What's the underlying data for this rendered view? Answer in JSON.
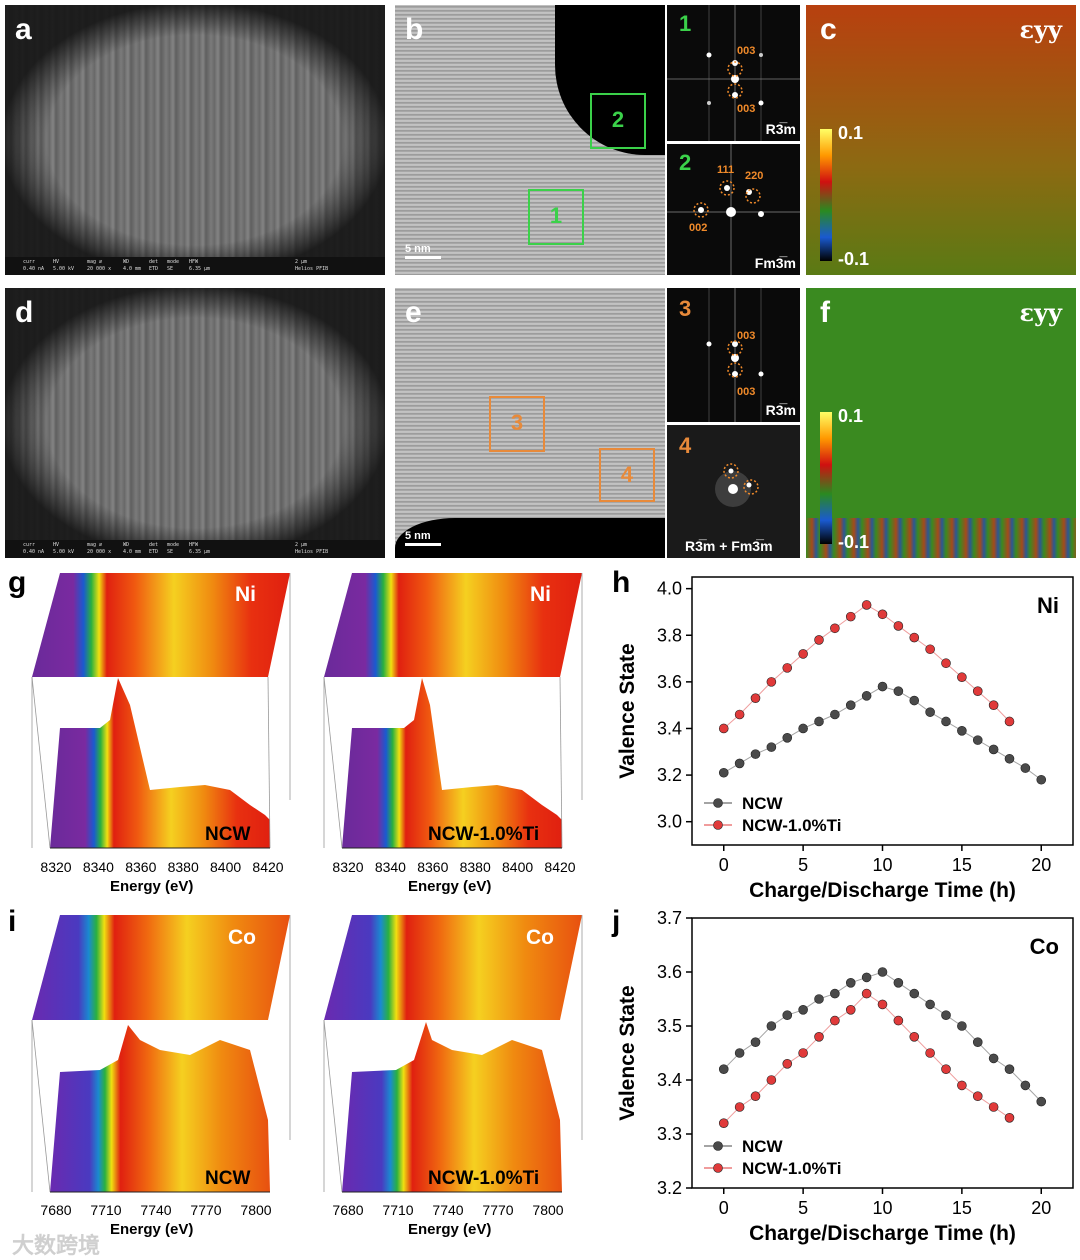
{
  "panels": {
    "a": {
      "label": "a"
    },
    "b": {
      "label": "b",
      "scale": "5 nm",
      "box1": "1",
      "box2": "2"
    },
    "b_fft1": {
      "num": "1",
      "idx_top": "003",
      "idx_bot": "003",
      "phase": "R3̅m"
    },
    "b_fft2": {
      "num": "2",
      "idx_111": "111",
      "idx_220": "220",
      "idx_002": "002",
      "phase": "Fm3̅m"
    },
    "c": {
      "label": "c",
      "strain": "εyy",
      "cmax": "0.1",
      "cmin": "-0.1"
    },
    "d": {
      "label": "d"
    },
    "e": {
      "label": "e",
      "scale": "5 nm",
      "box3": "3",
      "box4": "4"
    },
    "e_fft3": {
      "num": "3",
      "idx_top": "003",
      "idx_bot": "003",
      "phase": "R3̅m"
    },
    "e_fft4": {
      "num": "4",
      "phase": "R3̅m + Fm3̅m"
    },
    "f": {
      "label": "f",
      "strain": "εyy",
      "cmax": "0.1",
      "cmin": "-0.1"
    },
    "g": {
      "label": "g",
      "element": "Ni",
      "sample_left": "NCW",
      "sample_right": "NCW-1.0%Ti",
      "xlabel": "Energy (eV)",
      "ticks": [
        "8320",
        "8340",
        "8360",
        "8380",
        "8400",
        "8420"
      ]
    },
    "i": {
      "label": "i",
      "element": "Co",
      "sample_left": "NCW",
      "sample_right": "NCW-1.0%Ti",
      "xlabel": "Energy (eV)",
      "ticks": [
        "7680",
        "7710",
        "7740",
        "7770",
        "7800"
      ]
    },
    "h": {
      "label": "h"
    },
    "j": {
      "label": "j"
    }
  },
  "sem_bar": {
    "curr": "curr",
    "hv": "HV",
    "mag": "mag ⌀",
    "wd": "WD",
    "det": "det",
    "mode": "mode",
    "hfw": "HFW",
    "curr_v": "0.40 nA",
    "hv_v": "5.00 kV",
    "mag_v": "20 000 x",
    "wd_v": "4.0 mm",
    "det_v": "ETD",
    "mode_v": "SE",
    "hfw_v": "6.35 μm",
    "scale": "2 μm",
    "brand": "Helios PFIB"
  },
  "watermark": "大数跨境",
  "chart_data": [
    {
      "type": "scatter",
      "panel": "h",
      "title": "Ni",
      "xlabel": "Charge/Discharge Time (h)",
      "ylabel": "Valence State",
      "xlim": [
        -2,
        22
      ],
      "ylim": [
        2.9,
        4.05
      ],
      "xticks": [
        0,
        5,
        10,
        15,
        20
      ],
      "yticks": [
        3.0,
        3.2,
        3.4,
        3.6,
        3.8,
        4.0
      ],
      "series": [
        {
          "name": "NCW",
          "color": "#4a4a4a",
          "x": [
            0,
            1,
            2,
            3,
            4,
            5,
            6,
            7,
            8,
            9,
            10,
            11,
            12,
            13,
            14,
            15,
            16,
            17,
            18,
            19,
            20
          ],
          "values": [
            3.21,
            3.25,
            3.29,
            3.32,
            3.36,
            3.4,
            3.43,
            3.46,
            3.5,
            3.54,
            3.58,
            3.56,
            3.52,
            3.47,
            3.43,
            3.39,
            3.35,
            3.31,
            3.27,
            3.23,
            3.18
          ]
        },
        {
          "name": "NCW-1.0%Ti",
          "color": "#e03a3a",
          "x": [
            0,
            1,
            2,
            3,
            4,
            5,
            6,
            7,
            8,
            9,
            10,
            11,
            12,
            13,
            14,
            15,
            16,
            17,
            18
          ],
          "values": [
            3.4,
            3.46,
            3.53,
            3.6,
            3.66,
            3.72,
            3.78,
            3.83,
            3.88,
            3.93,
            3.89,
            3.84,
            3.79,
            3.74,
            3.68,
            3.62,
            3.56,
            3.5,
            3.43
          ]
        }
      ]
    },
    {
      "type": "scatter",
      "panel": "j",
      "title": "Co",
      "xlabel": "Charge/Discharge Time (h)",
      "ylabel": "Valence State",
      "xlim": [
        -2,
        22
      ],
      "ylim": [
        3.2,
        3.7
      ],
      "xticks": [
        0,
        5,
        10,
        15,
        20
      ],
      "yticks": [
        3.2,
        3.3,
        3.4,
        3.5,
        3.6,
        3.7
      ],
      "series": [
        {
          "name": "NCW",
          "color": "#4a4a4a",
          "x": [
            0,
            1,
            2,
            3,
            4,
            5,
            6,
            7,
            8,
            9,
            10,
            11,
            12,
            13,
            14,
            15,
            16,
            17,
            18,
            19,
            20
          ],
          "values": [
            3.42,
            3.45,
            3.47,
            3.5,
            3.52,
            3.53,
            3.55,
            3.56,
            3.58,
            3.59,
            3.6,
            3.58,
            3.56,
            3.54,
            3.52,
            3.5,
            3.47,
            3.44,
            3.42,
            3.39,
            3.36
          ]
        },
        {
          "name": "NCW-1.0%Ti",
          "color": "#e03a3a",
          "x": [
            0,
            1,
            2,
            3,
            4,
            5,
            6,
            7,
            8,
            9,
            10,
            11,
            12,
            13,
            14,
            15,
            16,
            17,
            18
          ],
          "values": [
            3.32,
            3.35,
            3.37,
            3.4,
            3.43,
            3.45,
            3.48,
            3.51,
            3.53,
            3.56,
            3.54,
            3.51,
            3.48,
            3.45,
            3.42,
            3.39,
            3.37,
            3.35,
            3.33
          ]
        }
      ]
    }
  ]
}
